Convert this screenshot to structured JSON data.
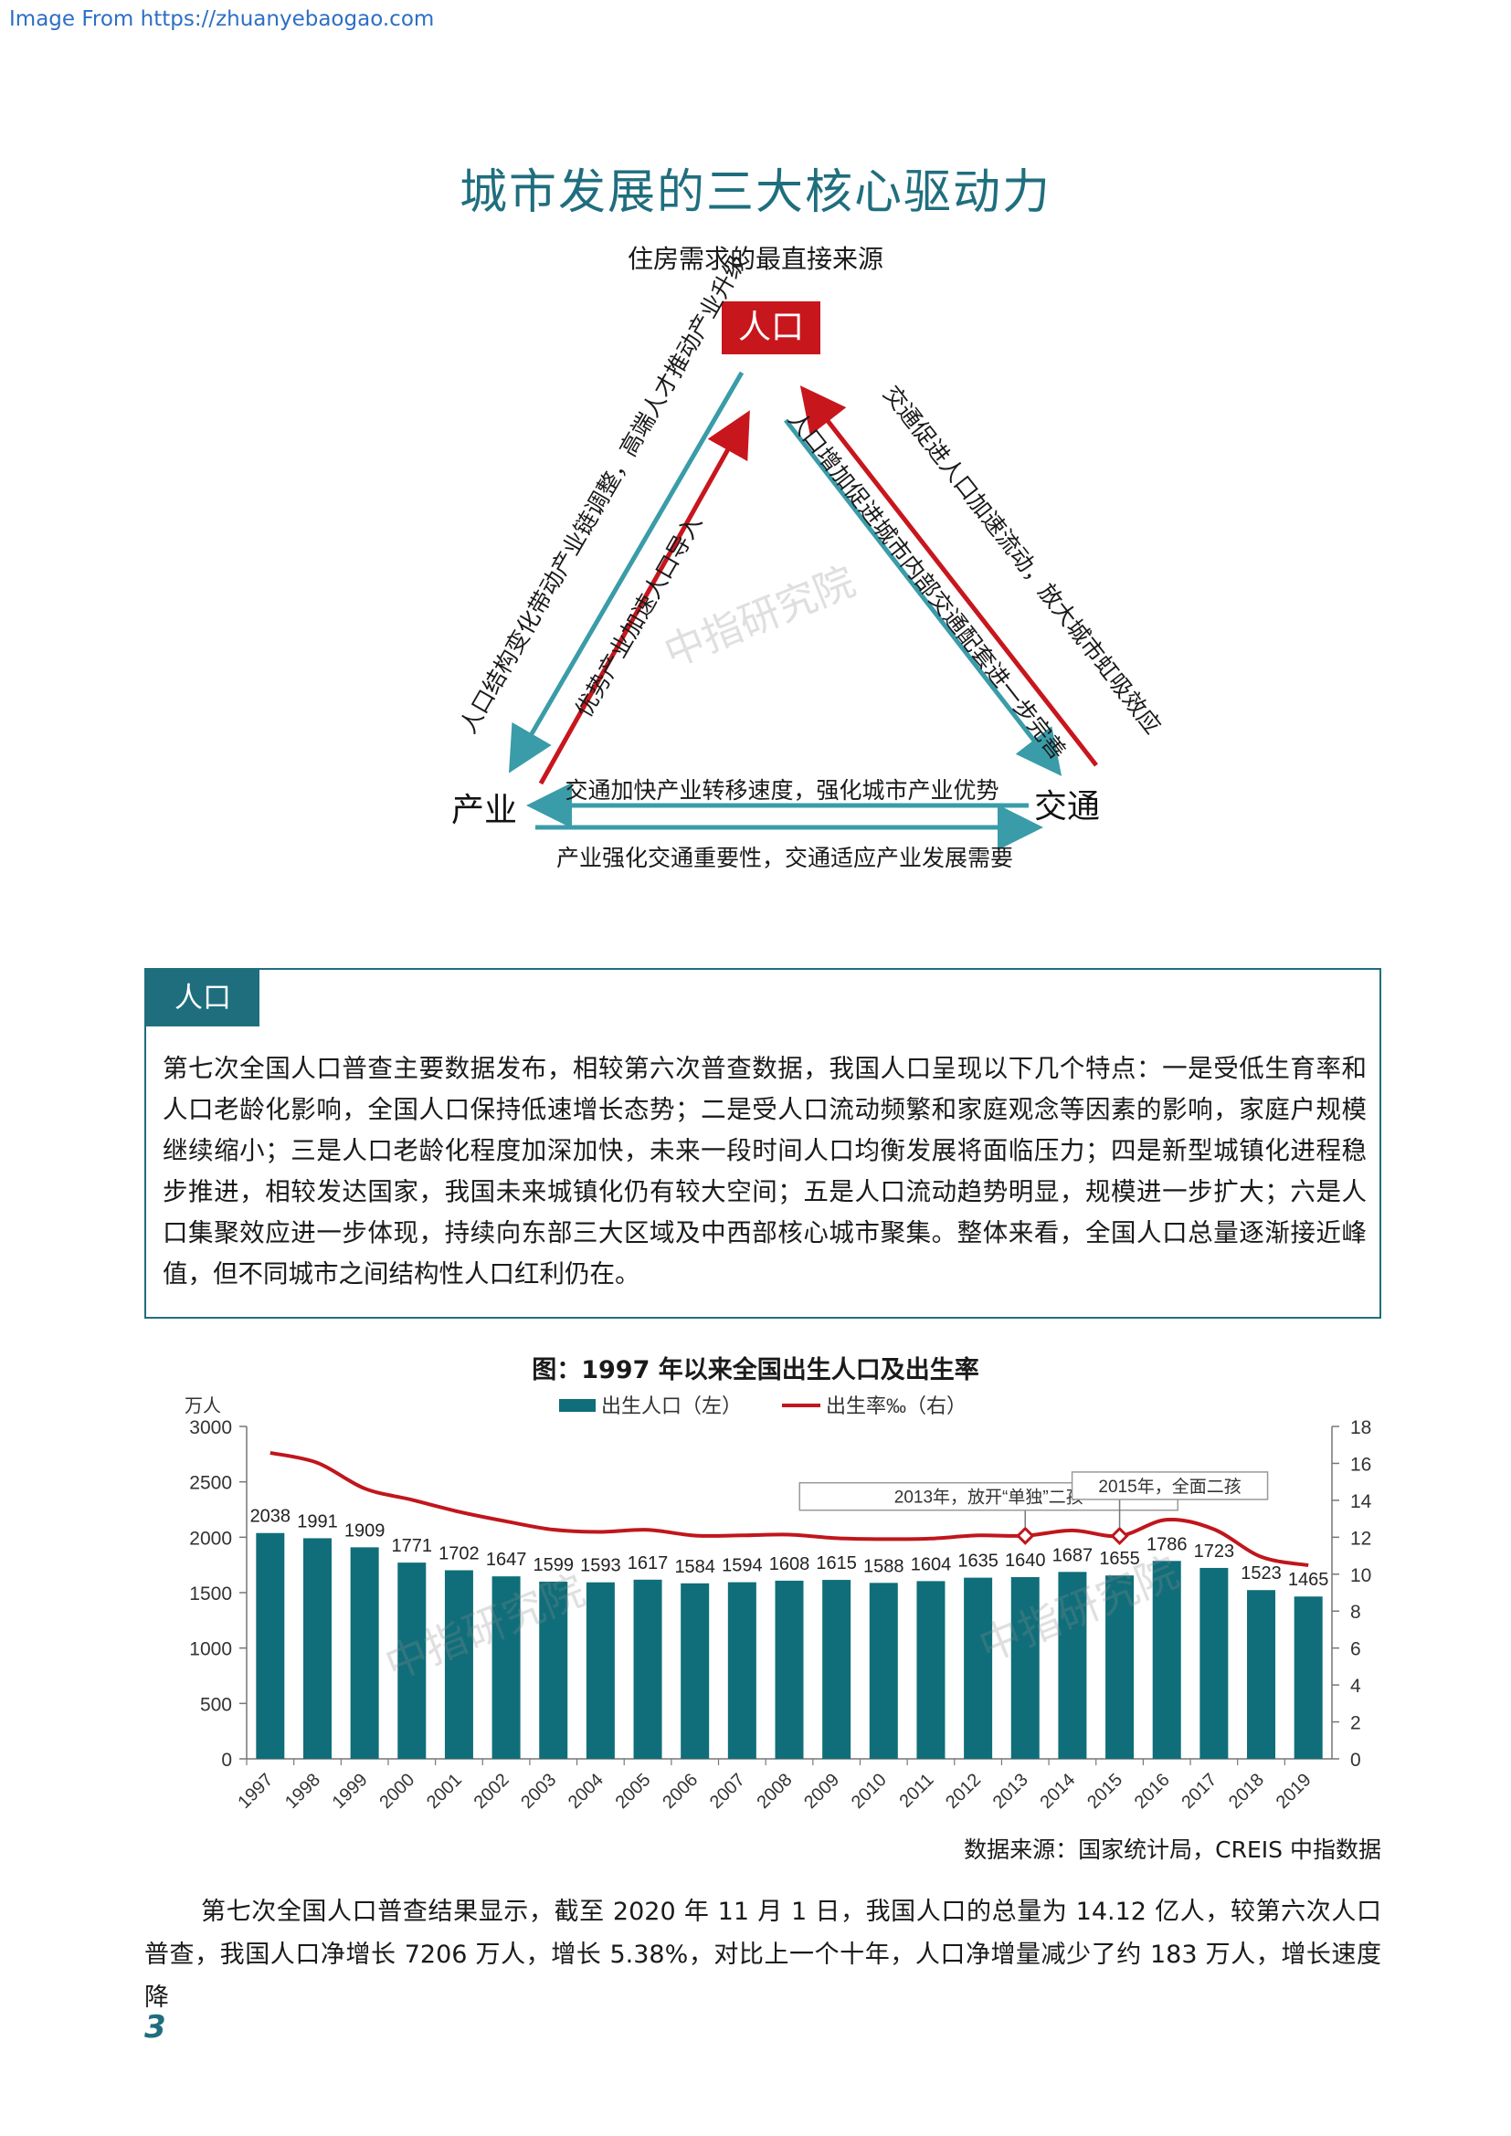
{
  "header": {
    "source_link": "Image From https://zhuanyebaogao.com"
  },
  "title": "城市发展的三大核心驱动力",
  "subtitle": "住房需求的最直接来源",
  "diagram": {
    "nodes": {
      "population": "人口",
      "industry": "产业",
      "transport": "交通"
    },
    "edges": {
      "industry_to_pop_outer": "人口结构变化带动产业链调整，高端人才推动产业升级",
      "industry_to_pop_inner": "优势产业加速人口导入",
      "transport_to_pop_outer": "交通促进人口加速流动，放大城市虹吸效应",
      "pop_to_transport_inner": "人口增加促进城市内部交通配套进一步完善",
      "transport_to_industry": "交通加快产业转移速度，强化城市产业优势",
      "industry_to_transport": "产业强化交通重要性，交通适应产业发展需要"
    },
    "colors": {
      "red": "#c8161d",
      "teal": "#3a9ca8"
    },
    "watermark": "中指研究院"
  },
  "section": {
    "tab": "人口",
    "text": "第七次全国人口普查主要数据发布，相较第六次普查数据，我国人口呈现以下几个特点：一是受低生育率和人口老龄化影响，全国人口保持低速增长态势；二是受人口流动频繁和家庭观念等因素的影响，家庭户规模继续缩小；三是人口老龄化程度加深加快，未来一段时间人口均衡发展将面临压力；四是新型城镇化进程稳步推进，相较发达国家，我国未来城镇化仍有较大空间；五是人口流动趋势明显，规模进一步扩大；六是人口集聚效应进一步体现，持续向东部三大区域及中西部核心城市聚集。整体来看，全国人口总量逐渐接近峰值，但不同城市之间结构性人口红利仍在。"
  },
  "chart_title": "图：1997 年以来全国出生人口及出生率",
  "chart_data": {
    "type": "bar",
    "categories": [
      "1997",
      "1998",
      "1999",
      "2000",
      "2001",
      "2002",
      "2003",
      "2004",
      "2005",
      "2006",
      "2007",
      "2008",
      "2009",
      "2010",
      "2011",
      "2012",
      "2013",
      "2014",
      "2015",
      "2016",
      "2017",
      "2018",
      "2019"
    ],
    "series": [
      {
        "name": "出生人口（左）",
        "type": "bar",
        "axis": "left",
        "values": [
          2038,
          1991,
          1909,
          1771,
          1702,
          1647,
          1599,
          1593,
          1617,
          1584,
          1594,
          1608,
          1615,
          1588,
          1604,
          1635,
          1640,
          1687,
          1655,
          1786,
          1723,
          1523,
          1465
        ]
      },
      {
        "name": "出生率‰（右）",
        "type": "line",
        "axis": "right",
        "values": [
          16.57,
          16.03,
          14.64,
          14.03,
          13.38,
          12.86,
          12.41,
          12.29,
          12.4,
          12.09,
          12.1,
          12.14,
          11.95,
          11.9,
          11.93,
          12.1,
          12.08,
          12.37,
          12.07,
          12.95,
          12.43,
          10.94,
          10.48
        ]
      }
    ],
    "ylabel_left": "万人",
    "ylim_left": [
      0,
      3000
    ],
    "yticks_left": [
      0,
      500,
      1000,
      1500,
      2000,
      2500,
      3000
    ],
    "ylim_right": [
      0,
      18
    ],
    "yticks_right": [
      0,
      2,
      4,
      6,
      8,
      10,
      12,
      14,
      16,
      18
    ],
    "annotations": [
      {
        "text": "2013年，放开“单独”二孩",
        "year": "2013"
      },
      {
        "text": "2015年，全面二孩",
        "year": "2015"
      }
    ],
    "legend_position": "top",
    "grid": false,
    "colors": {
      "bar": "#0f6e7a",
      "line": "#c0161c"
    },
    "watermark": "中指研究院"
  },
  "data_source": "数据来源：国家统计局，CREIS 中指数据",
  "body_text": "第七次全国人口普查结果显示，截至 2020 年 11 月 1 日，我国人口的总量为 14.12 亿人，较第六次人口普查，我国人口净增长 7206 万人，增长 5.38%，对比上一个十年，人口净增量减少了约 183 万人，增长速度降",
  "page_number": "3"
}
